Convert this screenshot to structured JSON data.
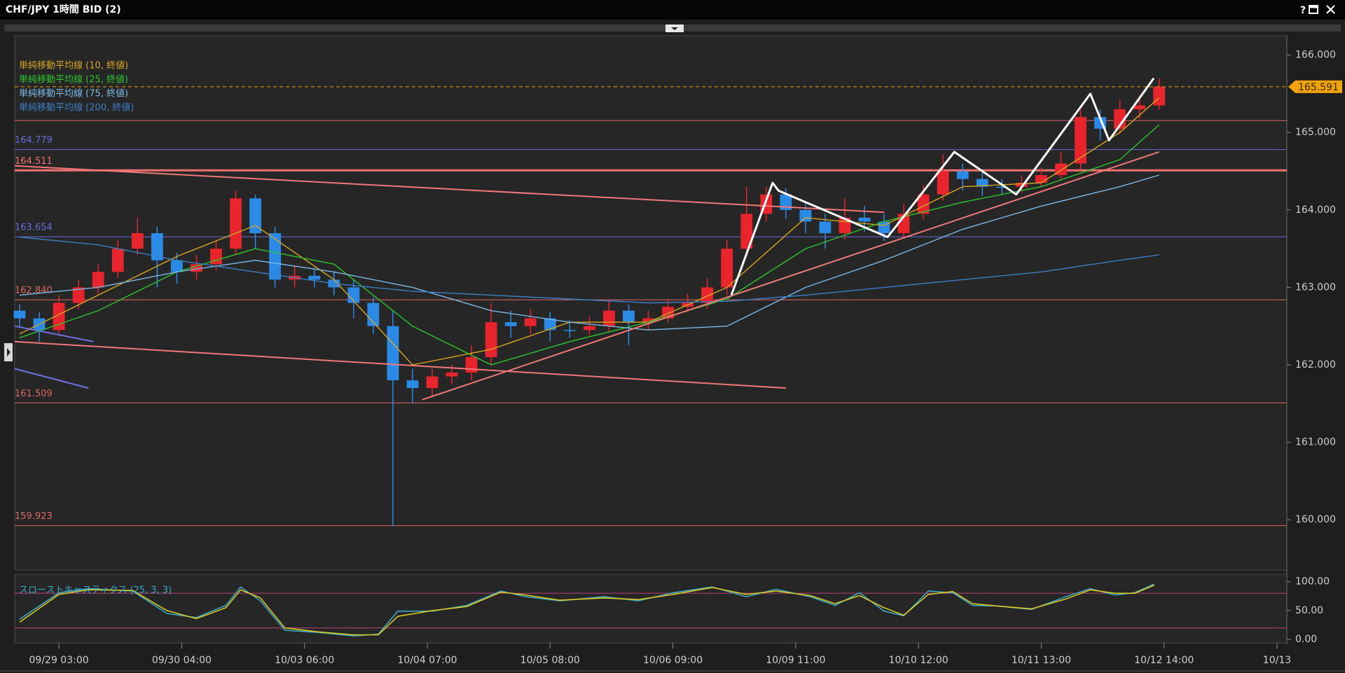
{
  "window": {
    "help": "?"
  },
  "chart_data": [
    {
      "type": "candlestick",
      "title": "CHF/JPY 1時間 BID (2)",
      "x": [
        -8,
        -4,
        0,
        4,
        8,
        12,
        16,
        20,
        24,
        28,
        32,
        36,
        40,
        44,
        48,
        52,
        56,
        60,
        64,
        68,
        72,
        76,
        80,
        84,
        88,
        92,
        96,
        100,
        104,
        108,
        112,
        116,
        120,
        124,
        128,
        132,
        136,
        140,
        144,
        148,
        152,
        156,
        160,
        164,
        168,
        172,
        176,
        180,
        184,
        188,
        192,
        196,
        200,
        204,
        208,
        212,
        216,
        220,
        224
      ],
      "open": [
        162.7,
        162.6,
        162.45,
        162.8,
        163.0,
        163.2,
        163.5,
        163.7,
        163.35,
        163.2,
        163.3,
        163.5,
        164.15,
        163.7,
        163.1,
        163.15,
        163.1,
        163.0,
        162.8,
        162.5,
        161.8,
        161.7,
        161.85,
        161.9,
        162.1,
        162.55,
        162.5,
        162.6,
        162.45,
        162.45,
        162.5,
        162.7,
        162.55,
        162.6,
        162.75,
        162.8,
        163.0,
        163.5,
        163.95,
        164.2,
        164.0,
        163.85,
        163.7,
        163.9,
        163.85,
        163.7,
        163.95,
        164.2,
        164.5,
        164.4,
        164.3,
        164.3,
        164.35,
        164.45,
        164.6,
        165.2,
        165.05,
        165.3,
        165.35
      ],
      "high": [
        162.78,
        162.68,
        162.9,
        163.1,
        163.3,
        163.62,
        163.9,
        163.78,
        163.45,
        163.42,
        163.62,
        164.25,
        164.2,
        163.78,
        163.28,
        163.25,
        163.2,
        163.1,
        162.88,
        162.7,
        161.95,
        161.95,
        162.0,
        162.25,
        162.8,
        162.7,
        162.72,
        162.68,
        162.58,
        162.62,
        162.85,
        162.78,
        162.7,
        162.85,
        162.92,
        163.12,
        163.62,
        164.3,
        164.3,
        164.28,
        164.1,
        163.95,
        164.15,
        164.05,
        163.95,
        164.08,
        164.32,
        164.72,
        164.6,
        164.48,
        164.4,
        164.45,
        164.55,
        164.75,
        165.3,
        165.3,
        165.42,
        165.48,
        165.7
      ],
      "low": [
        162.5,
        162.3,
        162.4,
        162.72,
        162.92,
        163.12,
        163.42,
        163.0,
        163.05,
        163.1,
        163.22,
        163.42,
        163.5,
        163.0,
        163.0,
        163.0,
        162.9,
        162.6,
        162.4,
        159.923,
        161.5,
        161.6,
        161.75,
        161.8,
        162.0,
        162.35,
        162.4,
        162.3,
        162.35,
        162.38,
        162.42,
        162.25,
        162.45,
        162.55,
        162.68,
        162.72,
        162.9,
        163.4,
        163.85,
        163.88,
        163.7,
        163.5,
        163.62,
        163.72,
        163.6,
        163.65,
        163.88,
        164.12,
        164.25,
        164.18,
        164.2,
        164.22,
        164.3,
        164.4,
        164.52,
        164.9,
        164.98,
        165.18,
        165.3
      ],
      "close": [
        162.6,
        162.45,
        162.8,
        163.0,
        163.2,
        163.5,
        163.7,
        163.35,
        163.2,
        163.3,
        163.5,
        164.15,
        163.7,
        163.1,
        163.15,
        163.1,
        163.0,
        162.8,
        162.5,
        161.8,
        161.7,
        161.85,
        161.9,
        162.1,
        162.55,
        162.5,
        162.6,
        162.45,
        162.45,
        162.5,
        162.7,
        162.55,
        162.6,
        162.75,
        162.8,
        163.0,
        163.5,
        163.95,
        164.2,
        164.0,
        163.85,
        163.7,
        163.9,
        163.85,
        163.7,
        163.95,
        164.2,
        164.5,
        164.4,
        164.3,
        164.3,
        164.35,
        164.45,
        164.6,
        165.2,
        165.05,
        165.3,
        165.35,
        165.591
      ],
      "up_color": "#e8242c",
      "down_color": "#2b8ae6",
      "series": [
        {
          "name": "単純移動平均線 (10, 終値)",
          "color": "#d9a521",
          "x": [
            -8,
            8,
            24,
            40,
            56,
            72,
            88,
            104,
            120,
            136,
            152,
            168,
            184,
            200,
            216,
            224
          ],
          "values": [
            162.4,
            162.9,
            163.4,
            163.8,
            163.1,
            162.0,
            162.2,
            162.55,
            162.55,
            163.0,
            163.9,
            163.8,
            164.3,
            164.35,
            165.0,
            165.45
          ]
        },
        {
          "name": "単純移動平均線 (25, 終値)",
          "color": "#2cc52c",
          "x": [
            -8,
            8,
            24,
            40,
            56,
            72,
            88,
            104,
            120,
            136,
            152,
            168,
            184,
            200,
            216,
            224
          ],
          "values": [
            162.35,
            162.7,
            163.2,
            163.5,
            163.3,
            162.5,
            162.0,
            162.3,
            162.55,
            162.85,
            163.5,
            163.85,
            164.1,
            164.3,
            164.65,
            165.1
          ]
        },
        {
          "name": "単純移動平均線 (75, 終値)",
          "color": "#7ab8e8",
          "x": [
            -8,
            8,
            24,
            40,
            56,
            72,
            88,
            104,
            120,
            136,
            152,
            168,
            184,
            200,
            216,
            224
          ],
          "values": [
            162.9,
            163.0,
            163.2,
            163.35,
            163.2,
            163.0,
            162.7,
            162.55,
            162.45,
            162.5,
            163.0,
            163.35,
            163.75,
            164.05,
            164.3,
            164.45
          ]
        },
        {
          "name": "単純移動平均線 (200, 終値)",
          "color": "#3a7fc8",
          "x": [
            -8,
            8,
            24,
            40,
            56,
            72,
            88,
            104,
            120,
            136,
            152,
            168,
            184,
            200,
            216,
            224
          ],
          "values": [
            163.65,
            163.55,
            163.35,
            163.2,
            163.05,
            162.95,
            162.9,
            162.85,
            162.8,
            162.82,
            162.9,
            163.0,
            163.1,
            163.2,
            163.35,
            163.42
          ]
        }
      ],
      "levels": [
        {
          "value": 165.155,
          "color": "#e06666",
          "width": 1
        },
        {
          "value": 164.779,
          "label": "164.779",
          "color": "#6a6ae0",
          "width": 1
        },
        {
          "value": 164.511,
          "label": "164.511",
          "color": "#f07070",
          "width": 3
        },
        {
          "value": 163.654,
          "label": "163.654",
          "color": "#6a6ae0",
          "width": 1
        },
        {
          "value": 162.84,
          "label": "162.840",
          "color": "#e06666",
          "width": 1
        },
        {
          "value": 161.509,
          "label": "161.509",
          "color": "#e06666",
          "width": 1
        },
        {
          "value": 159.923,
          "label": "159.923",
          "color": "#e06666",
          "width": 1
        }
      ],
      "current": {
        "value": 165.591,
        "label": "165.591",
        "color": "#f0a30a"
      },
      "trendlines": [
        {
          "color": "#f07878",
          "width": 2,
          "x": [
            -9,
            168
          ],
          "values": [
            164.57,
            163.97
          ]
        },
        {
          "color": "#f07878",
          "width": 2,
          "x": [
            -9,
            148
          ],
          "values": [
            162.3,
            161.7
          ]
        },
        {
          "color": "#f07878",
          "width": 2,
          "x": [
            74,
            224
          ],
          "values": [
            161.55,
            164.75
          ]
        },
        {
          "color": "#7070e8",
          "width": 2,
          "x": [
            -9,
            7
          ],
          "values": [
            162.5,
            162.3
          ]
        },
        {
          "color": "#7070e8",
          "width": 2,
          "x": [
            -9,
            6
          ],
          "values": [
            161.95,
            161.7
          ]
        },
        {
          "color": "#ffffff",
          "width": 3,
          "x": [
            136.9,
            145.3,
            146.5,
            168.7,
            182.3,
            194.9,
            210,
            213.8,
            222.9
          ],
          "values": [
            162.9,
            164.35,
            164.25,
            163.65,
            164.75,
            164.2,
            165.5,
            164.9,
            165.7
          ]
        }
      ],
      "xlim": [
        -9,
        250
      ],
      "ylim": [
        159.35,
        166.25
      ],
      "xticks": [
        {
          "value": 0,
          "label": "09/29 03:00"
        },
        {
          "value": 25,
          "label": "09/30 04:00"
        },
        {
          "value": 50,
          "label": "10/03 06:00"
        },
        {
          "value": 75,
          "label": "10/04 07:00"
        },
        {
          "value": 100,
          "label": "10/05 08:00"
        },
        {
          "value": 125,
          "label": "10/06 09:00"
        },
        {
          "value": 150,
          "label": "10/09 11:00"
        },
        {
          "value": 175,
          "label": "10/10 12:00"
        },
        {
          "value": 200,
          "label": "10/11 13:00"
        },
        {
          "value": 225,
          "label": "10/12 14:00"
        },
        {
          "value": 248,
          "label": "10/13"
        }
      ],
      "yticks": [
        {
          "value": 160,
          "label": "160.000"
        },
        {
          "value": 161,
          "label": "161.000"
        },
        {
          "value": 162,
          "label": "162.000"
        },
        {
          "value": 163,
          "label": "163.000"
        },
        {
          "value": 164,
          "label": "164.000"
        },
        {
          "value": 165,
          "label": "165.000"
        },
        {
          "value": 166,
          "label": "166.000"
        }
      ]
    },
    {
      "type": "line",
      "title": "スローストキャスティクス (25, 3, 3)",
      "title_color": "#3aa8c8",
      "series": [
        {
          "color": "#3aa8c8",
          "x": [
            -8,
            0,
            6,
            15,
            22,
            28,
            34,
            37,
            41,
            46,
            53,
            60,
            65,
            69,
            76,
            83,
            90,
            95,
            102,
            111,
            118,
            125,
            133,
            140,
            146,
            153,
            158,
            163,
            168,
            172,
            177,
            182,
            186,
            191,
            198,
            205,
            210,
            215,
            219,
            223
          ],
          "values": [
            35,
            81,
            88,
            84,
            45,
            38,
            59,
            91,
            67,
            16,
            12,
            6,
            9,
            49,
            49,
            59,
            84,
            74,
            67,
            74,
            67,
            81,
            91,
            74,
            87,
            74,
            59,
            81,
            49,
            41,
            84,
            81,
            59,
            58,
            52,
            74,
            88,
            77,
            81,
            96
          ]
        },
        {
          "color": "#d8c820",
          "x": [
            -8,
            0,
            6,
            15,
            22,
            28,
            34,
            37,
            41,
            46,
            53,
            60,
            65,
            69,
            76,
            83,
            90,
            95,
            102,
            111,
            118,
            125,
            133,
            140,
            146,
            153,
            158,
            163,
            168,
            172,
            177,
            182,
            186,
            191,
            198,
            205,
            210,
            215,
            219,
            223
          ],
          "values": [
            30,
            78,
            86,
            85,
            50,
            36,
            55,
            86,
            72,
            20,
            13,
            8,
            8,
            40,
            50,
            57,
            82,
            77,
            68,
            72,
            69,
            78,
            90,
            78,
            84,
            76,
            62,
            76,
            55,
            42,
            78,
            83,
            62,
            58,
            53,
            70,
            86,
            80,
            80,
            94
          ]
        }
      ],
      "levels": [
        {
          "value": 80,
          "color": "#c0407a",
          "width": 1
        },
        {
          "value": 20,
          "color": "#c0407a",
          "width": 1
        }
      ],
      "ylim": [
        -6,
        113
      ],
      "yticks": [
        {
          "value": 0,
          "label": "0.00"
        },
        {
          "value": 50,
          "label": "50.00"
        },
        {
          "value": 100,
          "label": "100.00"
        }
      ]
    }
  ]
}
